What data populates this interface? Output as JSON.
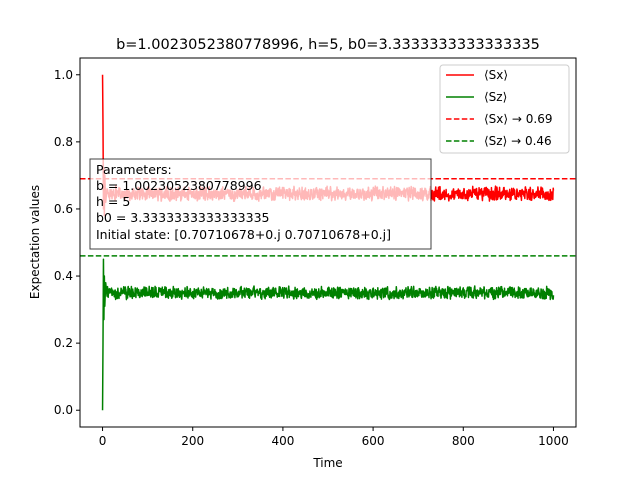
{
  "chart_data": {
    "type": "line",
    "title": "b=1.0023052380778996, h=5, b0=3.3333333333333335",
    "xlabel": "Time",
    "ylabel": "Expectation values",
    "xlim": [
      -50,
      1050
    ],
    "ylim": [
      -0.05,
      1.05
    ],
    "xticks": [
      0,
      200,
      400,
      600,
      800,
      1000
    ],
    "yticks": [
      0.0,
      0.2,
      0.4,
      0.6,
      0.8,
      1.0
    ],
    "xtick_labels": [
      "0",
      "200",
      "400",
      "600",
      "800",
      "1000"
    ],
    "ytick_labels": [
      "0.0",
      "0.2",
      "0.4",
      "0.6",
      "0.8",
      "1.0"
    ],
    "grid": false,
    "legend_position": "top-right",
    "series": [
      {
        "name": "⟨Sx⟩",
        "color": "#ff0000",
        "style": "solid",
        "mean": 0.645,
        "noise_amplitude": 0.015,
        "x_range": [
          0,
          1000
        ],
        "initial": [
          [
            0,
            1.0
          ],
          [
            1,
            0.85
          ],
          [
            2,
            0.6
          ],
          [
            3,
            0.72
          ],
          [
            4,
            0.58
          ],
          [
            5,
            0.7
          ],
          [
            7,
            0.62
          ],
          [
            10,
            0.66
          ]
        ]
      },
      {
        "name": "⟨Sz⟩",
        "color": "#008000",
        "style": "solid",
        "mean": 0.35,
        "noise_amplitude": 0.013,
        "x_range": [
          0,
          1000
        ],
        "initial": [
          [
            0,
            0.0
          ],
          [
            1,
            0.2
          ],
          [
            2,
            0.45
          ],
          [
            3,
            0.27
          ],
          [
            4,
            0.4
          ],
          [
            5,
            0.31
          ],
          [
            7,
            0.38
          ],
          [
            10,
            0.34
          ]
        ]
      },
      {
        "name": "⟨Sx⟩ → 0.69",
        "color": "#ff0000",
        "style": "dashed",
        "value": 0.69
      },
      {
        "name": "⟨Sz⟩ → 0.46",
        "color": "#008000",
        "style": "dashed",
        "value": 0.46
      }
    ],
    "annotation": {
      "lines": [
        "Parameters:",
        "b = 1.0023052380778996",
        "h = 5",
        "b0 = 3.3333333333333335",
        "Initial state: [0.70710678+0.j 0.70710678+0.j]"
      ]
    }
  }
}
